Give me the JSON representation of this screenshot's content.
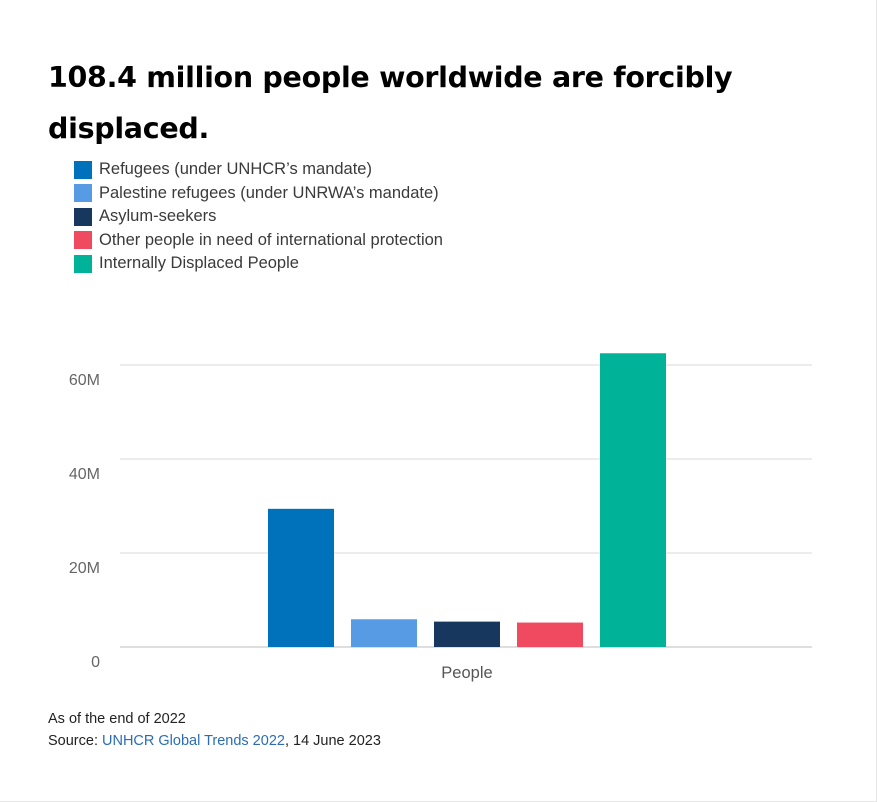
{
  "header": {
    "title": "108.4 million people worldwide are forcibly displaced."
  },
  "legend": {
    "items": [
      {
        "label": "Refugees (under UNHCR’s mandate)",
        "color": "#0072bc"
      },
      {
        "label": "Palestine refugees (under UNRWA’s mandate)",
        "color": "#589be5"
      },
      {
        "label": "Asylum-seekers",
        "color": "#18375f"
      },
      {
        "label": "Other people in need of international protection",
        "color": "#ef4a60"
      },
      {
        "label": "Internally Displaced People",
        "color": "#00b398"
      }
    ]
  },
  "chart_data": {
    "type": "bar",
    "categories": [
      "People"
    ],
    "series": [
      {
        "name": "Refugees (under UNHCR’s mandate)",
        "values": [
          29.4
        ],
        "color": "#0072bc"
      },
      {
        "name": "Palestine refugees (under UNRWA’s mandate)",
        "values": [
          5.9
        ],
        "color": "#589be5"
      },
      {
        "name": "Asylum-seekers",
        "values": [
          5.4
        ],
        "color": "#18375f"
      },
      {
        "name": "Other people in need of international protection",
        "values": [
          5.2
        ],
        "color": "#ef4a60"
      },
      {
        "name": "Internally Displaced People",
        "values": [
          62.5
        ],
        "color": "#00b398"
      }
    ],
    "y_ticks": [
      "0",
      "20M",
      "40M",
      "60M"
    ],
    "y_tick_values": [
      0,
      20,
      40,
      60
    ],
    "ylim": [
      0,
      60
    ],
    "grid": true,
    "legend_position": "top-left",
    "xlabel": "",
    "ylabel": ""
  },
  "footer": {
    "note": "As of the end of 2022",
    "source_prefix": "Source: ",
    "source_link": "UNHCR Global Trends 2022",
    "source_suffix": ", 14 June 2023"
  }
}
